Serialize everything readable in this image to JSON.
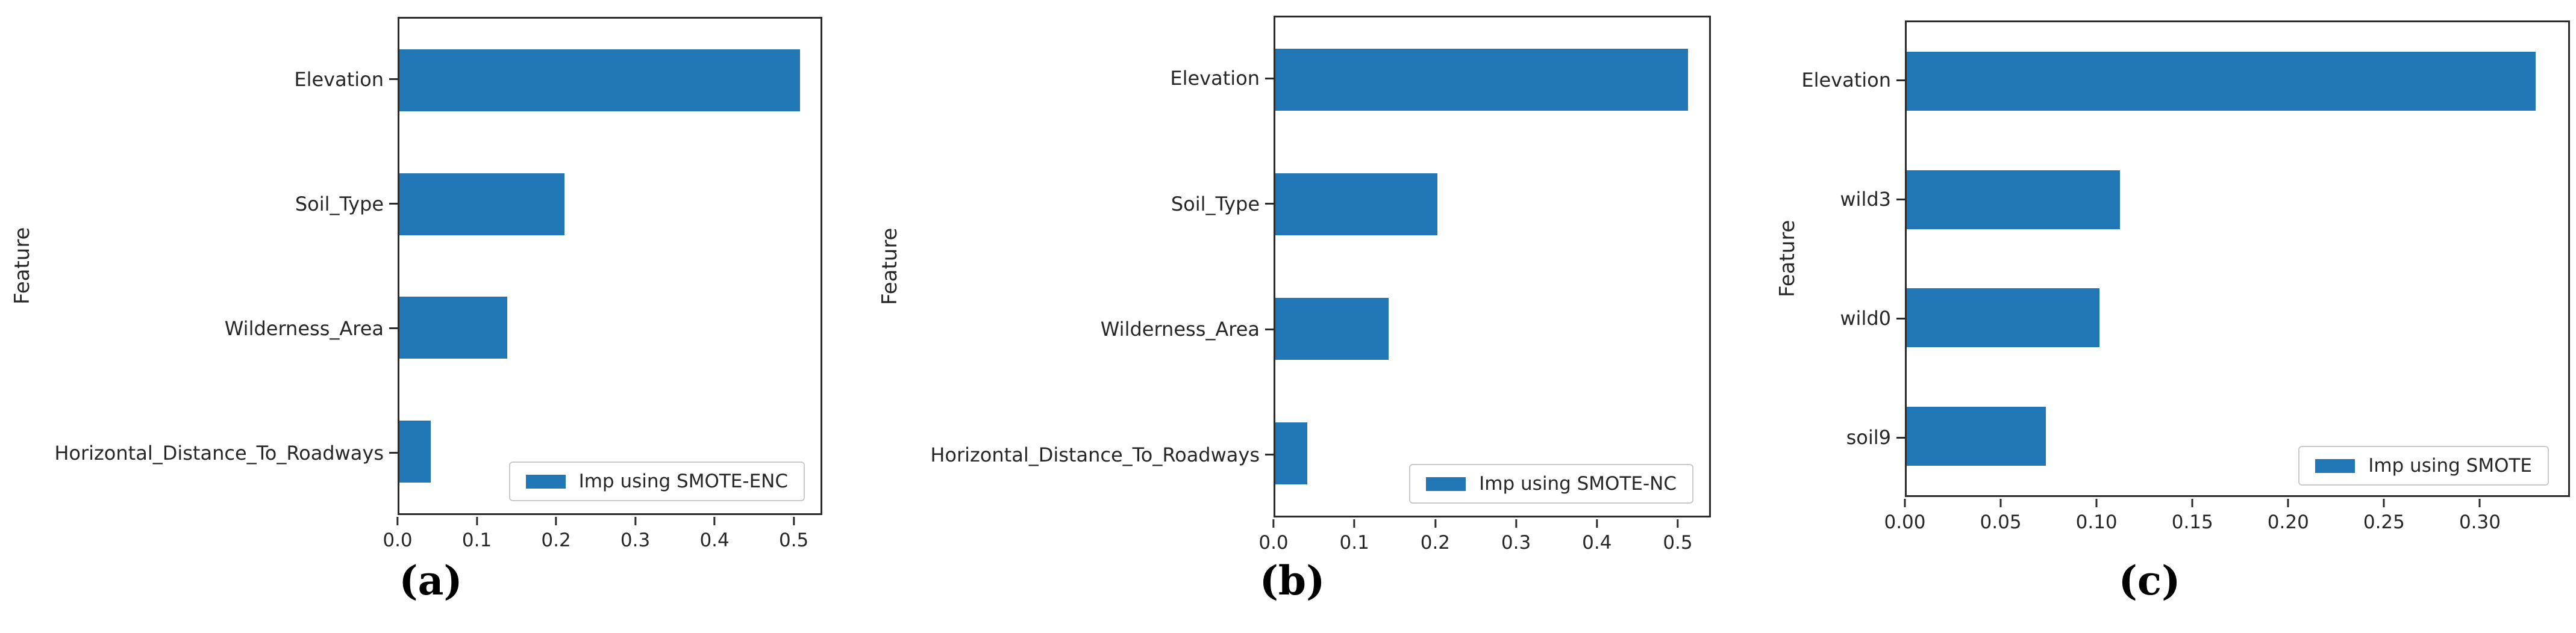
{
  "figure": {
    "background": "#ffffff",
    "bar_color": "#2177b5",
    "axis_color": "#2b2b2b",
    "text_color": "#262626"
  },
  "chart_data": [
    {
      "type": "bar",
      "orientation": "horizontal",
      "caption": "(a)",
      "ylabel": "Feature",
      "legend_label": "Imp using SMOTE-ENC",
      "legend_position": "lower right",
      "grid": false,
      "categories": [
        "Elevation",
        "Soil_Type",
        "Wilderness_Area",
        "Horizontal_Distance_To_Roadways"
      ],
      "values": [
        0.51,
        0.21,
        0.137,
        0.04
      ],
      "xlim": [
        0,
        0.536
      ],
      "xticks": [
        {
          "v": 0.0,
          "label": "0.0"
        },
        {
          "v": 0.1,
          "label": "0.1"
        },
        {
          "v": 0.2,
          "label": "0.2"
        },
        {
          "v": 0.3,
          "label": "0.3"
        },
        {
          "v": 0.4,
          "label": "0.4"
        },
        {
          "v": 0.5,
          "label": "0.5"
        }
      ]
    },
    {
      "type": "bar",
      "orientation": "horizontal",
      "caption": "(b)",
      "ylabel": "Feature",
      "legend_label": "Imp using SMOTE-NC",
      "legend_position": "lower right",
      "grid": false,
      "categories": [
        "Elevation",
        "Soil_Type",
        "Wilderness_Area",
        "Horizontal_Distance_To_Roadways"
      ],
      "values": [
        0.515,
        0.202,
        0.141,
        0.04
      ],
      "xlim": [
        0,
        0.541
      ],
      "xticks": [
        {
          "v": 0.0,
          "label": "0.0"
        },
        {
          "v": 0.1,
          "label": "0.1"
        },
        {
          "v": 0.2,
          "label": "0.2"
        },
        {
          "v": 0.3,
          "label": "0.3"
        },
        {
          "v": 0.4,
          "label": "0.4"
        },
        {
          "v": 0.5,
          "label": "0.5"
        }
      ]
    },
    {
      "type": "bar",
      "orientation": "horizontal",
      "caption": "(c)",
      "ylabel": "Feature",
      "legend_label": "Imp using SMOTE",
      "legend_position": "lower right",
      "grid": false,
      "categories": [
        "Elevation",
        "wild3",
        "wild0",
        "soil9"
      ],
      "values": [
        0.33,
        0.112,
        0.101,
        0.073
      ],
      "xlim": [
        0,
        0.347
      ],
      "xticks": [
        {
          "v": 0.0,
          "label": "0.00"
        },
        {
          "v": 0.05,
          "label": "0.05"
        },
        {
          "v": 0.1,
          "label": "0.10"
        },
        {
          "v": 0.15,
          "label": "0.15"
        },
        {
          "v": 0.2,
          "label": "0.20"
        },
        {
          "v": 0.25,
          "label": "0.25"
        },
        {
          "v": 0.3,
          "label": "0.30"
        }
      ]
    }
  ]
}
